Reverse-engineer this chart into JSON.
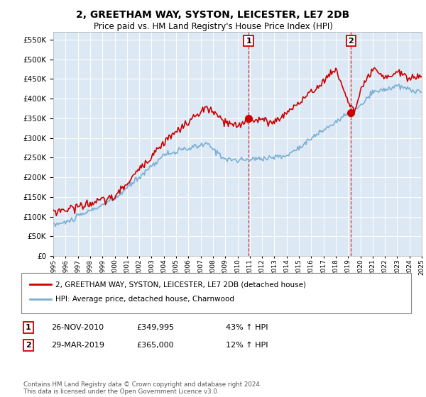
{
  "title": "2, GREETHAM WAY, SYSTON, LEICESTER, LE7 2DB",
  "subtitle": "Price paid vs. HM Land Registry's House Price Index (HPI)",
  "ylim": [
    0,
    570000
  ],
  "yticks": [
    0,
    50000,
    100000,
    150000,
    200000,
    250000,
    300000,
    350000,
    400000,
    450000,
    500000,
    550000
  ],
  "sale1_date": 2010.9,
  "sale1_price": 349995,
  "sale1_label": "1",
  "sale2_date": 2019.24,
  "sale2_price": 365000,
  "sale2_label": "2",
  "hpi_color": "#7bafd4",
  "property_color": "#cc0000",
  "sale_marker_color": "#cc0000",
  "dashed_line_color": "#cc0000",
  "plot_bg_color": "#dce9f5",
  "legend_label_property": "2, GREETHAM WAY, SYSTON, LEICESTER, LE7 2DB (detached house)",
  "legend_label_hpi": "HPI: Average price, detached house, Charnwood",
  "footnote": "Contains HM Land Registry data © Crown copyright and database right 2024.\nThis data is licensed under the Open Government Licence v3.0.",
  "xmin": 1995,
  "xmax": 2025
}
